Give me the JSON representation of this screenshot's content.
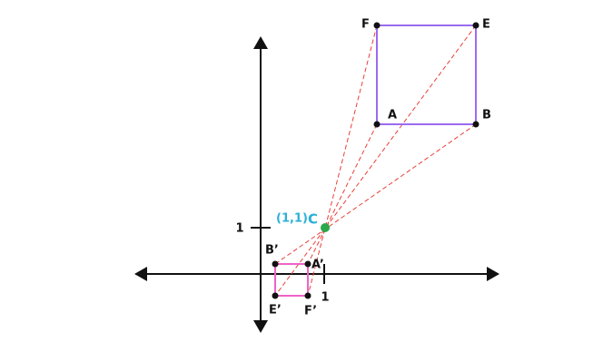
{
  "object": {
    "A": "A",
    "B": "B",
    "E": "E",
    "F": "F"
  },
  "image": {
    "A": "A’",
    "B": "B’",
    "E": "E’",
    "F": "F’"
  },
  "center": {
    "label": "C",
    "coordinate": "(1,1)"
  },
  "axes": {
    "x_tick_label": "1",
    "y_tick_label": "1"
  }
}
